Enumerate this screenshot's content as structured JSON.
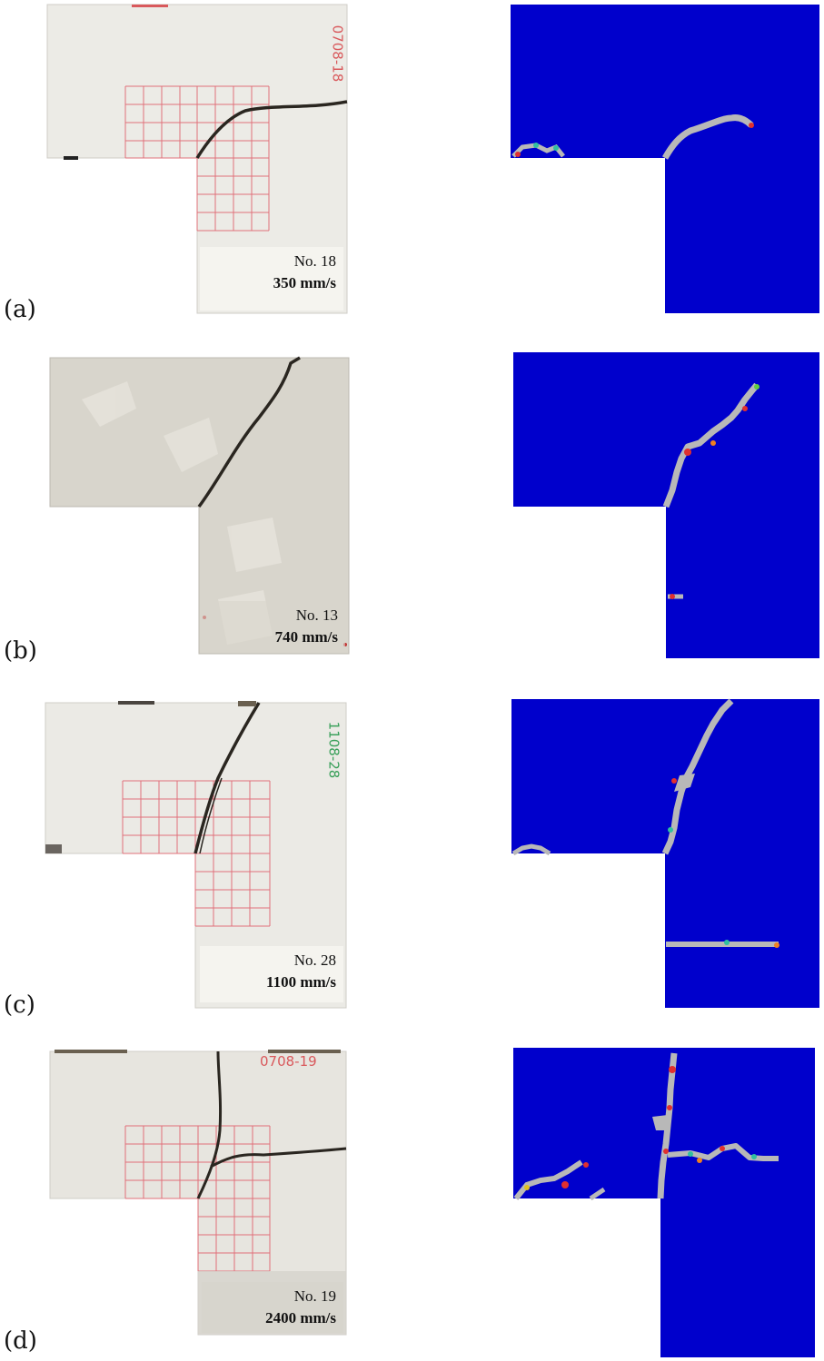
{
  "figure": {
    "panels": [
      {
        "label": "(a)",
        "specimen": "No. 18",
        "speed": "350 mm/s",
        "marking": "0708-18",
        "marking_color": "#d9595c",
        "surface": "#ecebe6",
        "grid": true
      },
      {
        "label": "(b)",
        "specimen": "No. 13",
        "speed": "740 mm/s",
        "marking": "",
        "marking_color": "#d9595c",
        "surface": "#d8d5cc",
        "grid": false
      },
      {
        "label": "(c)",
        "specimen": "No. 28",
        "speed": "1100 mm/s",
        "marking": "1108-28",
        "marking_color": "#3aa05a",
        "surface": "#ebeae5",
        "grid": true
      },
      {
        "label": "(d)",
        "specimen": "No. 19",
        "speed": "2400 mm/s",
        "marking": "0708-19",
        "marking_color": "#d9595c",
        "surface": "#e7e5df",
        "grid": true
      }
    ],
    "colors": {
      "simulation_bg": "#0000cc",
      "crack_sim": "#b8b8b8",
      "crack_photo": "#2a2620",
      "grid": "#e0707a"
    }
  }
}
